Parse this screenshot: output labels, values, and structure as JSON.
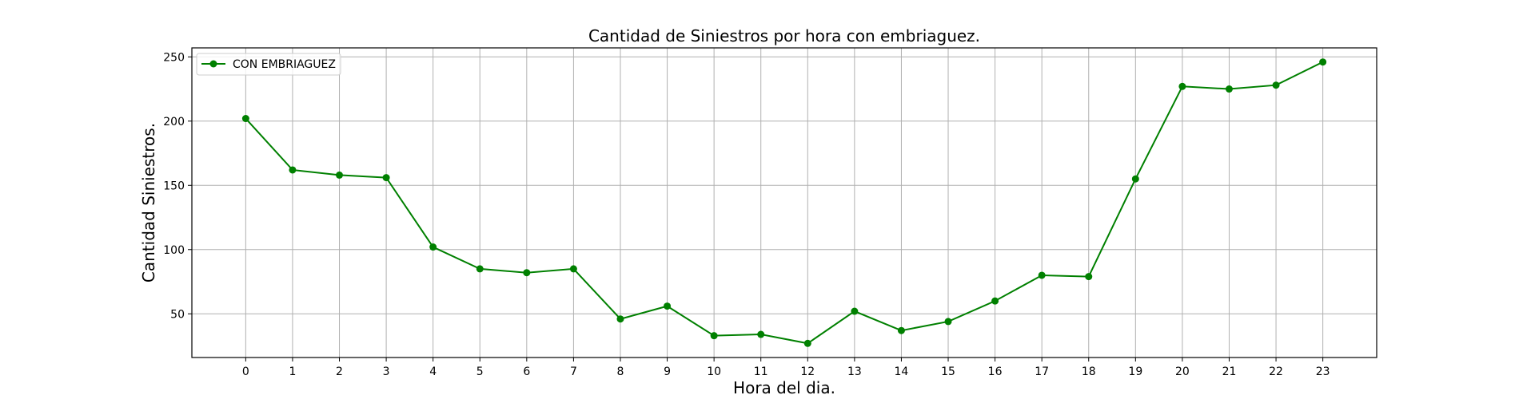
{
  "chart_data": {
    "type": "line",
    "title": "Cantidad de Siniestros por hora con embriaguez.",
    "xlabel": "Hora del dia.",
    "ylabel": "Cantidad Siniestros.",
    "x": [
      0,
      1,
      2,
      3,
      4,
      5,
      6,
      7,
      8,
      9,
      10,
      11,
      12,
      13,
      14,
      15,
      16,
      17,
      18,
      19,
      20,
      21,
      22,
      23
    ],
    "xticks": [
      "0",
      "1",
      "2",
      "3",
      "4",
      "5",
      "6",
      "7",
      "8",
      "9",
      "10",
      "11",
      "12",
      "13",
      "14",
      "15",
      "16",
      "17",
      "18",
      "19",
      "20",
      "21",
      "22",
      "23"
    ],
    "yticks": [
      50,
      100,
      150,
      200,
      250
    ],
    "xlim": [
      -1.15,
      24.15
    ],
    "ylim": [
      16,
      257
    ],
    "grid": true,
    "legend_position": "top-left",
    "series": [
      {
        "name": "CON EMBRIAGUEZ",
        "color": "#008000",
        "marker": "circle",
        "values": [
          202,
          162,
          158,
          156,
          102,
          85,
          82,
          85,
          46,
          56,
          33,
          34,
          27,
          52,
          37,
          44,
          60,
          80,
          79,
          155,
          227,
          225,
          228,
          246
        ]
      }
    ]
  }
}
